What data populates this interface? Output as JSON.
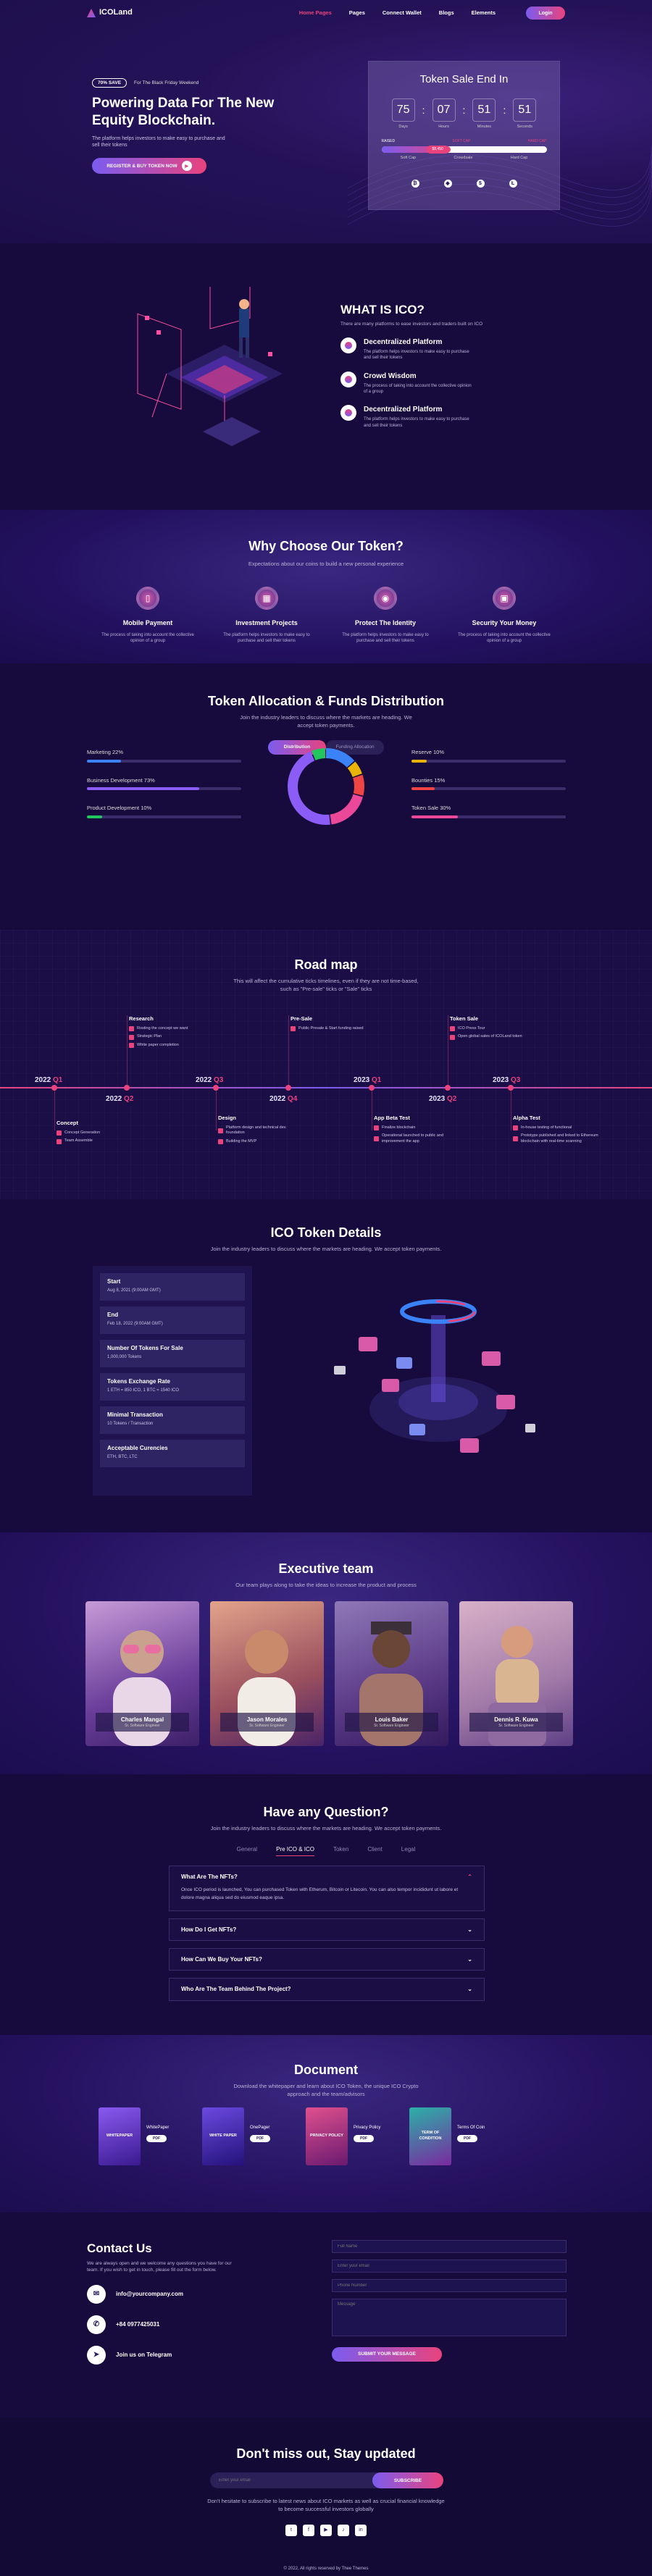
{
  "nav": {
    "logo": "ICOLand",
    "items": [
      "Home Pages",
      "Pages",
      "Connect Wallet",
      "Blogs",
      "Elements"
    ],
    "login": "Login"
  },
  "hero": {
    "badge": "70% SAVE",
    "badge_text": "For The Black Friday Weekend",
    "title": "Powering Data For The New Equity Blockchain.",
    "desc": "The platform helps investors to make easy to purchase and sell their tokens",
    "cta": "REGISTER & BUY TOKEN NOW"
  },
  "sale": {
    "title": "Token Sale End In",
    "countdown": [
      {
        "value": "75",
        "label": "Days"
      },
      {
        "value": "07",
        "label": "Hours"
      },
      {
        "value": "51",
        "label": "Minutes"
      },
      {
        "value": "51",
        "label": "Seconds"
      }
    ],
    "progress_labels": [
      "RAISED",
      "SOFT CAP",
      "HARD CAP"
    ],
    "progress_value": "$8,450",
    "progress_fraction": 0.42,
    "under_labels": [
      "Soft Cap",
      "Crowdsale",
      "Hard Cap"
    ],
    "payment_icons": [
      "bitcoin-icon",
      "ethereum-icon",
      "dollar-icon",
      "litecoin-icon"
    ]
  },
  "whatis": {
    "title": "WHAT IS ICO?",
    "subtitle": "There are many platforms to ease investors and traders built on ICO",
    "features": [
      {
        "title": "Decentralized Platform",
        "desc": "The platform helps investors to make easy to purchase and sell their tokens"
      },
      {
        "title": "Crowd Wisdom",
        "desc": "The process of taking into account the collective opinion of a group"
      },
      {
        "title": "Decentralized Platform",
        "desc": "The platform helps investors to make easy to purchase and sell their tokens"
      }
    ]
  },
  "why": {
    "title": "Why Choose Our Token?",
    "subtitle": "Expectations about our coins to build a new personal experience",
    "items": [
      {
        "title": "Mobile Payment",
        "desc": "The process of taking into account the collective opinion of a group"
      },
      {
        "title": "Investment Projects",
        "desc": "The platform helps investors to make easy to purchase and sell their tokens"
      },
      {
        "title": "Protect The Identity",
        "desc": "The platform helps investors to make easy to purchase and sell their tokens"
      },
      {
        "title": "Security Your Money",
        "desc": "The process of taking into account the collective opinion of a group"
      }
    ]
  },
  "allocation": {
    "title": "Token Allocation & Funds Distribution",
    "subtitle": "Join the industry leaders to discuss where the markets are heading. We accept token payments.",
    "tabs": [
      "Distribution",
      "Funding Allocation"
    ],
    "left": [
      {
        "label": "Marketing 22%",
        "value": 22,
        "color": "#3b82f6"
      },
      {
        "label": "Business Development 73%",
        "value": 73,
        "color": "#8b5cf6"
      },
      {
        "label": "Product Development 10%",
        "value": 10,
        "color": "#22c55e"
      }
    ],
    "right": [
      {
        "label": "Reserve 10%",
        "value": 10,
        "color": "#eab308"
      },
      {
        "label": "Bounties 15%",
        "value": 15,
        "color": "#ef4444"
      },
      {
        "label": "Token Sale 30%",
        "value": 30,
        "color": "#ec4899"
      }
    ],
    "donut_colors": [
      "#3b82f6",
      "#eab308",
      "#ef4444",
      "#ec4899",
      "#8b5cf6",
      "#22c55e"
    ]
  },
  "roadmap": {
    "title": "Road map",
    "subtitle": "This will affect the cumulative ticks timelines, even if they are not time-based, such as \"Pre-sale\" ticks or \"Sale\" ticks",
    "years": [
      {
        "y": "2022",
        "q": "Q1"
      },
      {
        "y": "2022",
        "q": "Q2"
      },
      {
        "y": "2022",
        "q": "Q3"
      },
      {
        "y": "2022",
        "q": "Q4"
      },
      {
        "y": "2023",
        "q": "Q1"
      },
      {
        "y": "2023",
        "q": "Q2"
      },
      {
        "y": "2023",
        "q": "Q3"
      }
    ],
    "top_events": [
      {
        "title": "Research",
        "items": [
          "Rosting the concept we want",
          "Strategic Plan",
          "White paper completion"
        ]
      },
      {
        "title": "Pre-Sale",
        "items": [
          "Public Presale & Start funding raised"
        ]
      },
      {
        "title": "Token Sale",
        "items": [
          "ICO Press Tour",
          "Open global sales of ICOLand token"
        ]
      }
    ],
    "bottom_events": [
      {
        "title": "Concept",
        "items": [
          "Concept Generation",
          "Team Assemble"
        ]
      },
      {
        "title": "Design",
        "items": [
          "Platform design and technical dev. foundation",
          "Building the MVP"
        ]
      },
      {
        "title": "App Beta Test",
        "items": [
          "Finalize blockchain",
          "Operational launched to public and improvement the app"
        ]
      },
      {
        "title": "Alpha Test",
        "items": [
          "In-house testing of functional",
          "Prototype published and linked to Ethereum blockchain with real-time scanning"
        ]
      }
    ]
  },
  "details": {
    "title": "ICO Token Details",
    "subtitle": "Join the industry leaders to discuss where the markets are heading. We accept token payments.",
    "rows": [
      {
        "k": "Start",
        "v": "Aug 8, 2021 (9:00AM GMT)"
      },
      {
        "k": "End",
        "v": "Feb 18, 2022 (9:00AM GMT)"
      },
      {
        "k": "Number Of Tokens For Sale",
        "v": "1,000,000 Tokens"
      },
      {
        "k": "Tokens Exchange Rate",
        "v": "1 ETH = 850 ICO, 1 BTC = 1540 ICO"
      },
      {
        "k": "Minimal Transaction",
        "v": "10 Tokens / Transaction"
      },
      {
        "k": "Acceptable Curencies",
        "v": "ETH, BTC, LTC"
      }
    ]
  },
  "team": {
    "title": "Executive team",
    "subtitle": "Our team plays along to take the ideas to increase the product and process",
    "members": [
      {
        "name": "Charles Mangal",
        "role": "Sr. Software Engineer"
      },
      {
        "name": "Jason Morales",
        "role": "Sr. Software Engineer"
      },
      {
        "name": "Louis Baker",
        "role": "Sr. Software Engineer"
      },
      {
        "name": "Dennis R. Kuwa",
        "role": "Sr. Software Engineer"
      }
    ]
  },
  "faq": {
    "title": "Have any Question?",
    "subtitle": "Join the industry leaders to discuss where the markets are heading. We accept token payments.",
    "tabs": [
      "General",
      "Pre ICO & ICO",
      "Token",
      "Client",
      "Legal"
    ],
    "questions": [
      {
        "q": "What Are The NFTs?",
        "a": "Once ICO period is launched, You can purchased Token with Etherum, Bitcoin or Litecoin. You can also tempor incididunt ut labore et dolore magna aliqua sed do eiusmod eaque ipsa."
      },
      {
        "q": "How Do I Get NFTs?"
      },
      {
        "q": "How Can We Buy Your NFTs?"
      },
      {
        "q": "Who Are The Team Behind The Project?"
      }
    ]
  },
  "document": {
    "title": "Document",
    "subtitle": "Download the whitepaper and learn about ICO Token, the unique ICO Crypto approach and the team/advisors",
    "docs": [
      {
        "cover": "WHITEPAPER",
        "name": "WhitePaper",
        "color": "#6d3fd0"
      },
      {
        "cover": "WHITE PAPER",
        "name": "OnePager",
        "color": "#4a2fa8"
      },
      {
        "cover": "PRIVACY POLICY",
        "name": "Privacy Policy",
        "color": "#b0307a"
      },
      {
        "cover": "TERM OF CONDITION",
        "name": "Terms Of Coin",
        "color": "#1f8a8a"
      }
    ],
    "pdf": "PDF"
  },
  "contact": {
    "title": "Contact Us",
    "desc": "We are always open and we welcome any questions you have for our team. If you wish to get in touch, please fill out the form below.",
    "email": "info@yourcompany.com",
    "phone": "+84 0977425031",
    "telegram": "Join us on Telegram",
    "fields": [
      "Full Name",
      "Enter your email",
      "Phone Number",
      "Message"
    ],
    "submit": "SUBMIT YOUR MESSAGE"
  },
  "news": {
    "title": "Don't miss out, Stay updated",
    "placeholder": "Enter your email",
    "button": "SUBSCRIBE",
    "note": "Don't hesitate to subscribe to latest news about ICO markets as well as crucial financial knowledge to become successful investors globally",
    "socials": [
      "twitter-icon",
      "facebook-icon",
      "youtube-icon",
      "tiktok-icon",
      "linkedin-icon"
    ],
    "copyright": "© 2022, All rights reserved by Thee Themes"
  }
}
